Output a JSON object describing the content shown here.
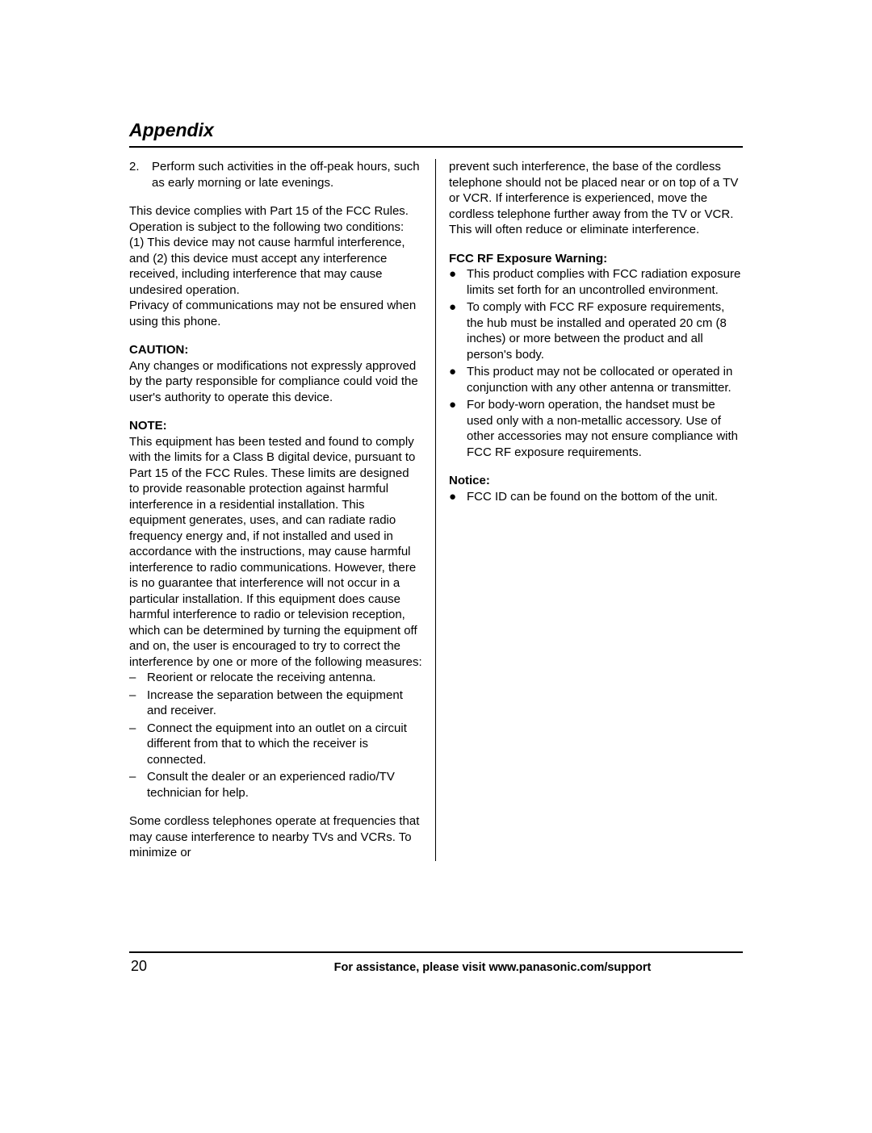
{
  "title": "Appendix",
  "page_number": "20",
  "footer_text": "For assistance, please visit www.panasonic.com/support",
  "left": {
    "item2_num": "2.",
    "item2_text": "Perform such activities in the off-peak hours, such as early morning or late evenings.",
    "compliance_p1": "This device complies with Part 15 of the FCC Rules. Operation is subject to the following two conditions:",
    "compliance_p2": "(1) This device may not cause harmful interference, and (2) this device must accept any interference received, including interference that may cause undesired operation.",
    "compliance_p3": "Privacy of communications may not be ensured when using this phone.",
    "caution_label": "CAUTION:",
    "caution_text": "Any changes or modifications not expressly approved by the party responsible for compliance could void the user's authority to operate this device.",
    "note_label": "NOTE:",
    "note_text": "This equipment has been tested and found to comply with the limits for a Class B digital device, pursuant to Part 15 of the FCC Rules. These limits are designed to provide reasonable protection against harmful interference in a residential installation. This equipment generates, uses, and can radiate radio frequency energy and, if not installed and used in accordance with the instructions, may cause harmful interference to radio communications. However, there is no guarantee that interference will not occur in a particular installation. If this equipment does cause harmful interference to radio or television reception, which can be determined by turning the equipment off and on, the user is encouraged to try to correct the interference by one or more of the following measures:",
    "measures": [
      "Reorient or relocate the receiving antenna.",
      "Increase the separation between the equipment and receiver.",
      "Connect the equipment into an outlet on a circuit different from that to which the receiver is connected.",
      "Consult the dealer or an experienced radio/TV technician for help."
    ],
    "cordless_text": "Some cordless telephones operate at frequencies that may cause interference to nearby TVs and VCRs. To minimize or"
  },
  "right": {
    "cont_text": "prevent such interference, the base of the cordless telephone should not be placed near or on top of a TV or VCR. If interference is experienced, move the cordless telephone further away from the TV or VCR. This will often reduce or eliminate interference.",
    "fcc_rf_label": "FCC RF Exposure Warning:",
    "fcc_rf_items": [
      "This product complies with FCC radiation exposure limits set forth for an uncontrolled environment.",
      "To comply with FCC RF exposure requirements, the hub must be installed and operated 20 cm (8 inches) or more between the product and all person's body.",
      "This product may not be collocated or operated in conjunction with any other antenna or transmitter.",
      "For body-worn operation, the handset must be used only with a non-metallic accessory. Use of other accessories may not ensure compliance with FCC RF exposure requirements."
    ],
    "notice_label": "Notice:",
    "notice_item": "FCC ID can be found on the bottom of the unit."
  }
}
